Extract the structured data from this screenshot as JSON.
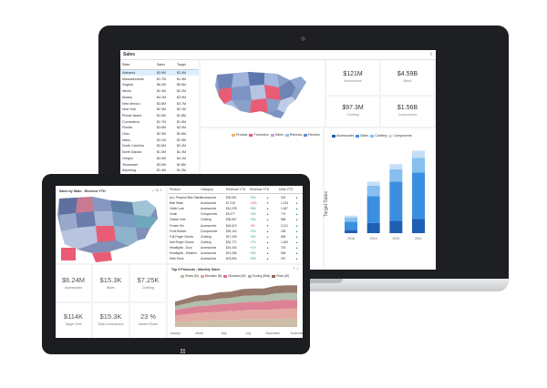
{
  "laptop": {
    "title": "Sales",
    "grid": {
      "headers": [
        "State",
        "Sales",
        "Target"
      ],
      "selected_state": "Alabama",
      "rows": [
        {
          "state": "Alabama",
          "sales": "$3.9M",
          "target": "$3.4M"
        },
        {
          "state": "Massachusetts",
          "sales": "$1.7M",
          "target": "$1.4M"
        },
        {
          "state": "Virginia",
          "sales": "$6.0M",
          "target": "$5.6M"
        },
        {
          "state": "Illinois",
          "sales": "$2.4M",
          "target": "$2.2M"
        },
        {
          "state": "Alaska",
          "sales": "$4.1M",
          "target": "$3.9M"
        },
        {
          "state": "New Mexico",
          "sales": "$3.8M",
          "target": "$3.7M"
        },
        {
          "state": "New York",
          "sales": "$2.3M",
          "target": "$2.1M"
        },
        {
          "state": "Rhode Island",
          "sales": "$1.9M",
          "target": "$1.8M"
        },
        {
          "state": "Connecticut",
          "sales": "$1.7M",
          "target": "$1.6M"
        },
        {
          "state": "Florida",
          "sales": "$3.6M",
          "target": "$3.4M"
        },
        {
          "state": "Ohio",
          "sales": "$2.9M",
          "target": "$2.6M"
        },
        {
          "state": "Idaho",
          "sales": "$3.1M",
          "target": "$2.9M"
        },
        {
          "state": "South Carolina",
          "sales": "$2.6M",
          "target": "$2.4M"
        },
        {
          "state": "North Dakota",
          "sales": "$1.5M",
          "target": "$1.4M"
        },
        {
          "state": "Oregon",
          "sales": "$4.4M",
          "target": "$4.1M"
        },
        {
          "state": "Tennessee",
          "sales": "$3.0M",
          "target": "$2.8M"
        },
        {
          "state": "Wyoming",
          "sales": "$1.4M",
          "target": "$1.3M"
        },
        {
          "state": "Pennsylvania",
          "sales": "$5.1M",
          "target": "$4.9M"
        },
        {
          "state": "Utah",
          "sales": "$2.8M",
          "target": "$2.6M"
        },
        {
          "state": "Kansas",
          "sales": "$2.2M",
          "target": "$2.0M"
        },
        {
          "state": "Missouri",
          "sales": "$3.3M",
          "target": "$3.1M"
        },
        {
          "state": "Georgia",
          "sales": "$4.2M",
          "target": "$4.0M"
        },
        {
          "state": "Delaware",
          "sales": "$1.6M",
          "target": "$1.5M"
        },
        {
          "state": "New Jersey",
          "sales": "$3.5M",
          "target": "$3.3M"
        },
        {
          "state": "Montana",
          "sales": "$1.9M",
          "target": "$1.8M"
        },
        {
          "state": "Maine",
          "sales": "$1.2M",
          "target": "$1.1M"
        },
        {
          "state": "Washington",
          "sales": "$4.6M",
          "target": "$4.3M"
        },
        {
          "state": "Hawaii",
          "sales": "$1.1M",
          "target": "$1.0M"
        },
        {
          "state": "Texas",
          "sales": "$6.3M",
          "target": "$6.0M"
        },
        {
          "state": "Nevada",
          "sales": "$2.0M",
          "target": "$1.9M"
        },
        {
          "state": "Iowa",
          "sales": "$1.8M",
          "target": "$1.7M"
        },
        {
          "state": "Arizona",
          "sales": "$3.2M",
          "target": "$3.0M"
        }
      ]
    },
    "kpis": [
      {
        "value": "$121M",
        "label": "Accessories"
      },
      {
        "value": "$4.59B",
        "label": "Bikes"
      },
      {
        "value": "$97.3M",
        "label": "Clothing"
      },
      {
        "value": "$1.56B",
        "label": "Components"
      }
    ],
    "area_legend": [
      "Product",
      "Promotion",
      "Sales",
      "Refunds",
      "Returns"
    ],
    "bar_legend": [
      "Accessories",
      "Bikes",
      "Clothing",
      "Components"
    ],
    "bar_ylabel": "Target Sales"
  },
  "tablet": {
    "map_title": "Sales by State - Revenue YTD",
    "grid_headers": [
      "Product",
      "Category",
      "Revenue YTD",
      "Revenue YTD",
      "Units YTD"
    ],
    "grid_rows": [
      {
        "product": "ALL-Purpose Bike Stand",
        "category": "Accessories",
        "rev": "$39,591",
        "chg": "+6%",
        "units": "315"
      },
      {
        "product": "Bike Wash",
        "category": "Accessories",
        "rev": "$7,218",
        "chg": "-10%",
        "units": "1,134"
      },
      {
        "product": "Cable Lock",
        "category": "Accessories",
        "rev": "$16,225",
        "chg": "+8%",
        "units": "1,087"
      },
      {
        "product": "Chain",
        "category": "Components",
        "rev": "$9,377",
        "chg": "+3%",
        "units": "774"
      },
      {
        "product": "Classic Vest",
        "category": "Clothing",
        "rev": "$35,687",
        "chg": "+4%",
        "units": "556"
      },
      {
        "product": "Fender Set",
        "category": "Accessories",
        "rev": "$46,619",
        "chg": "-9%",
        "units": "2,121"
      },
      {
        "product": "Front Brakes",
        "category": "Components",
        "rev": "$25,104",
        "chg": "+2%",
        "units": "236"
      },
      {
        "product": "Full-Finger Gloves",
        "category": "Clothing",
        "rev": "$27,305",
        "chg": "+5%",
        "units": "806"
      },
      {
        "product": "Half-Finger Gloves",
        "category": "Clothing",
        "rev": "$32,771",
        "chg": "+7%",
        "units": "1,450"
      },
      {
        "product": "Headlights - Dual",
        "category": "Accessories",
        "rev": "$16,340",
        "chg": "+1%",
        "units": "702"
      },
      {
        "product": "Headlights - Weather",
        "category": "Accessories",
        "rev": "$21,056",
        "chg": "+6%",
        "units": "508"
      },
      {
        "product": "Hitch Rack",
        "category": "Accessories",
        "rev": "$23,894",
        "chg": "+9%",
        "units": "267"
      }
    ],
    "kpis": [
      {
        "value": "$6.24M",
        "label": "Accessories"
      },
      {
        "value": "$15.3K",
        "label": "Bikes"
      },
      {
        "value": "$7.25K",
        "label": "Clothing"
      },
      {
        "value": "$114K",
        "label": "Target Sold"
      },
      {
        "value": "$15.3K",
        "label": "Total Commission"
      },
      {
        "value": "23 %",
        "label": "Market Share"
      }
    ],
    "chart_title": "Top 5 Products - Monthly Sales",
    "chart_legend": [
      "Shoes (M)",
      "Mountain (M)",
      "Mountain (W)",
      "Touring (Wild)",
      "Road (W)"
    ],
    "months": [
      "January",
      "March",
      "May",
      "July",
      "September",
      "November"
    ]
  },
  "chart_data": [
    {
      "type": "bar",
      "categories": [
        "2018",
        "2019",
        "2020",
        "2021"
      ],
      "series": [
        {
          "name": "Accessories",
          "values": [
            3,
            10,
            12,
            14
          ]
        },
        {
          "name": "Bikes",
          "values": [
            8,
            26,
            38,
            45
          ]
        },
        {
          "name": "Clothing",
          "values": [
            4,
            10,
            12,
            14
          ]
        },
        {
          "name": "Components",
          "values": [
            2,
            4,
            5,
            7
          ]
        }
      ],
      "ylabel": "Target Sales"
    },
    {
      "type": "area",
      "x": [
        "January",
        "February",
        "March",
        "April",
        "May",
        "June",
        "July",
        "August",
        "September",
        "October",
        "November",
        "December"
      ],
      "series": [
        {
          "name": "Shoes (M)",
          "values": [
            8,
            9,
            10,
            10,
            11,
            11,
            12,
            12,
            12,
            13,
            13,
            13
          ]
        },
        {
          "name": "Mountain (M)",
          "values": [
            10,
            11,
            12,
            13,
            13,
            14,
            14,
            15,
            15,
            15,
            16,
            16
          ]
        },
        {
          "name": "Mountain (W)",
          "values": [
            9,
            10,
            11,
            11,
            12,
            12,
            13,
            13,
            13,
            14,
            14,
            14
          ]
        },
        {
          "name": "Touring (Wild)",
          "values": [
            6,
            7,
            8,
            8,
            9,
            9,
            10,
            10,
            10,
            11,
            11,
            11
          ]
        },
        {
          "name": "Road (W)",
          "values": [
            7,
            8,
            9,
            9,
            10,
            10,
            11,
            11,
            11,
            12,
            12,
            12
          ]
        }
      ]
    }
  ]
}
